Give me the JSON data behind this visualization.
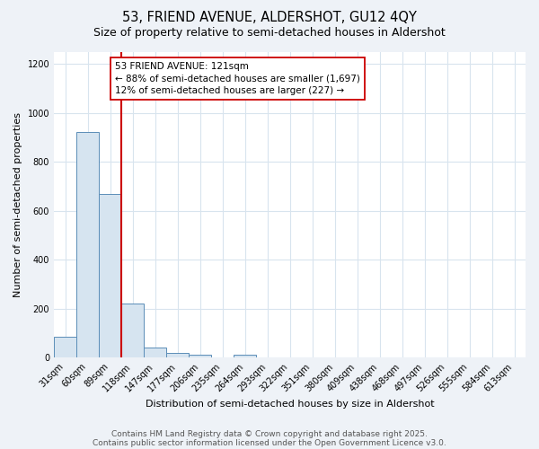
{
  "title_line1": "53, FRIEND AVENUE, ALDERSHOT, GU12 4QY",
  "title_line2": "Size of property relative to semi-detached houses in Aldershot",
  "xlabel": "Distribution of semi-detached houses by size in Aldershot",
  "ylabel": "Number of semi-detached properties",
  "categories": [
    "31sqm",
    "60sqm",
    "89sqm",
    "118sqm",
    "147sqm",
    "177sqm",
    "206sqm",
    "235sqm",
    "264sqm",
    "293sqm",
    "322sqm",
    "351sqm",
    "380sqm",
    "409sqm",
    "438sqm",
    "468sqm",
    "497sqm",
    "526sqm",
    "555sqm",
    "584sqm",
    "613sqm"
  ],
  "values": [
    85,
    920,
    670,
    220,
    40,
    20,
    10,
    0,
    10,
    0,
    0,
    0,
    0,
    0,
    0,
    0,
    0,
    0,
    0,
    0,
    0
  ],
  "bar_color": "#d6e4f0",
  "bar_edge_color": "#5b8db8",
  "grid_color": "#d8e4ee",
  "background_color": "#eef2f7",
  "plot_background": "#ffffff",
  "red_line_bin": 3,
  "red_line_color": "#cc0000",
  "annotation_text": "53 FRIEND AVENUE: 121sqm\n← 88% of semi-detached houses are smaller (1,697)\n12% of semi-detached houses are larger (227) →",
  "annotation_box_color": "#ffffff",
  "annotation_box_edge": "#cc0000",
  "footnote_line1": "Contains HM Land Registry data © Crown copyright and database right 2025.",
  "footnote_line2": "Contains public sector information licensed under the Open Government Licence v3.0.",
  "ylim": [
    0,
    1250
  ],
  "yticks": [
    0,
    200,
    400,
    600,
    800,
    1000,
    1200
  ],
  "title1_fontsize": 10.5,
  "title2_fontsize": 9,
  "axis_label_fontsize": 8,
  "tick_fontsize": 7,
  "annotation_fontsize": 7.5,
  "footnote_fontsize": 6.5
}
